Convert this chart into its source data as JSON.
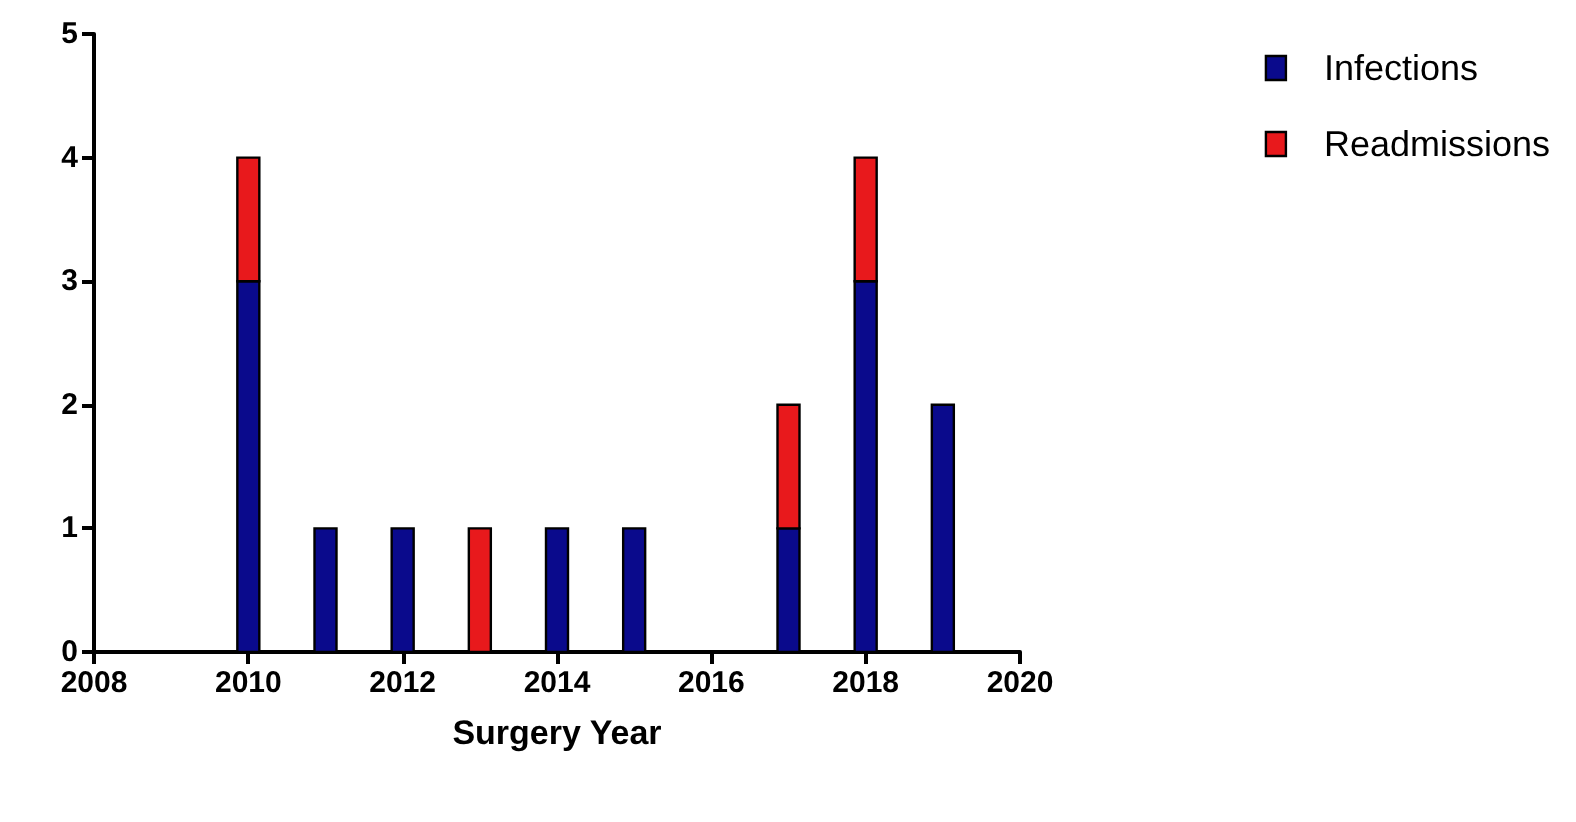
{
  "chart_data": {
    "type": "bar",
    "xlabel": "Surgery Year",
    "stacked": true,
    "x": [
      2010,
      2011,
      2012,
      2013,
      2014,
      2015,
      2016,
      2017,
      2018,
      2019
    ],
    "series": [
      {
        "name": "Infections",
        "color": "#0a0a8c",
        "values": [
          3,
          1,
          1,
          0,
          1,
          1,
          0,
          1,
          3,
          2
        ]
      },
      {
        "name": "Readmissions",
        "color": "#e8191c",
        "values": [
          1,
          0,
          0,
          1,
          0,
          0,
          0,
          1,
          1,
          0
        ]
      }
    ],
    "xlim": [
      2008,
      2020
    ],
    "xticks": [
      2008,
      2010,
      2012,
      2014,
      2016,
      2018,
      2020
    ],
    "ylim": [
      0,
      5
    ],
    "yticks": [
      0,
      1,
      2,
      3,
      4,
      5
    ],
    "grid": false,
    "legend": "top right"
  }
}
